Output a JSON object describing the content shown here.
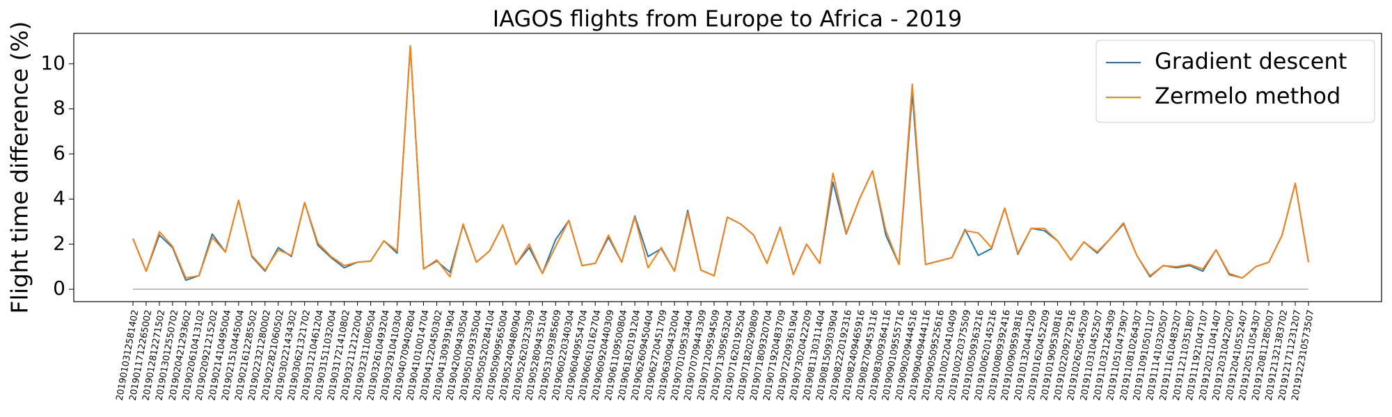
{
  "chart_data": {
    "type": "line",
    "title": "IAGOS flights from Europe to Africa - 2019",
    "ylabel": "Flight time difference (%)",
    "categories": [
      "2019010312581402",
      "2019011712265002",
      "2019012812271502",
      "2019013012550702",
      "2019020421293602",
      "2019020610413102",
      "2019020921215202",
      "2019021410495004",
      "2019021510445004",
      "2019021612285502",
      "2019022321280002",
      "2019022821060502",
      "2019030221434302",
      "2019030621321702",
      "2019031210461204",
      "2019031511032004",
      "2019031721410802",
      "2019032112122004",
      "2019032311080504",
      "2019032610493204",
      "2019032910410304",
      "2019040709402804",
      "2019041010014704",
      "2019041220450302",
      "2019041309391904",
      "2019042009430504",
      "2019050109335004",
      "2019050520284104",
      "2019050909565004",
      "2019052409480904",
      "2019052620323309",
      "2019052809435104",
      "2019053109385609",
      "2019060220340304",
      "2019060409554704",
      "2019060610162704",
      "2019060920440309",
      "2019061109500804",
      "2019061820191204",
      "2019062609450404",
      "2019062720451709",
      "2019063009432004",
      "2019070109533404",
      "2019070709443309",
      "2019071209594509",
      "2019071309563204",
      "2019071620192504",
      "2019071820290809",
      "2019071809320704",
      "2019071920483709",
      "2019072209361904",
      "2019073020422209",
      "2019081130311404",
      "2019081509303904",
      "2019082220192316",
      "2019082409465916",
      "2019082709453116",
      "2019083009364116",
      "2019090109555716",
      "2019090209444516",
      "2019090409444116",
      "2019090509525616",
      "2019100220410409",
      "2019100220375509",
      "2019100509363216",
      "2019100620145216",
      "2019100809392416",
      "2019100909593816",
      "2019101320441209",
      "2019101620452209",
      "2019101909530816",
      "2019102209272916",
      "2019102620545209",
      "2019110310452507",
      "2019110321264309",
      "2019110510473907",
      "2019110810264307",
      "2019110910501107",
      "2019111410320507",
      "2019111610483207",
      "2019112110351807",
      "2019111921047107",
      "2019120211041407",
      "2019120310422007",
      "2019120410552407",
      "2019120511054307",
      "2019120811285007",
      "2019121321383702",
      "2019121711231207",
      "2019122310573507"
    ],
    "series": [
      {
        "name": "Gradient descent",
        "color": "#1f77b4",
        "values": [
          2.25,
          0.8,
          2.4,
          1.85,
          0.4,
          0.6,
          2.45,
          1.65,
          3.95,
          1.45,
          0.8,
          1.85,
          1.45,
          3.85,
          1.95,
          1.4,
          0.95,
          1.2,
          1.25,
          2.15,
          1.6,
          10.8,
          0.9,
          1.25,
          0.75,
          2.85,
          1.2,
          1.7,
          2.85,
          1.1,
          1.85,
          0.7,
          2.2,
          3.05,
          1.05,
          1.15,
          2.3,
          1.2,
          3.25,
          1.45,
          1.8,
          0.8,
          3.5,
          0.85,
          0.6,
          3.2,
          2.9,
          2.4,
          1.15,
          2.75,
          0.65,
          2.0,
          1.15,
          4.75,
          2.45,
          4.0,
          5.25,
          2.4,
          1.1,
          8.7,
          1.1,
          1.25,
          1.4,
          2.65,
          1.5,
          1.8,
          3.6,
          1.55,
          2.7,
          2.6,
          2.15,
          1.3,
          2.1,
          1.6,
          2.25,
          2.9,
          1.5,
          0.55,
          1.05,
          0.95,
          1.05,
          0.8,
          1.75,
          0.65,
          0.5,
          1.0,
          1.2,
          2.4,
          4.7,
          1.2
        ]
      },
      {
        "name": "Zermelo method",
        "color": "#ff7f0e",
        "values": [
          2.25,
          0.8,
          2.55,
          1.9,
          0.5,
          0.6,
          2.3,
          1.65,
          3.95,
          1.5,
          0.85,
          1.75,
          1.5,
          3.85,
          2.05,
          1.45,
          1.05,
          1.2,
          1.25,
          2.15,
          1.7,
          10.8,
          0.9,
          1.3,
          0.55,
          2.9,
          1.2,
          1.7,
          2.85,
          1.1,
          2.0,
          0.7,
          1.9,
          3.05,
          1.05,
          1.15,
          2.4,
          1.2,
          3.2,
          0.95,
          1.85,
          0.8,
          3.4,
          0.85,
          0.6,
          3.2,
          2.9,
          2.4,
          1.15,
          2.75,
          0.65,
          2.0,
          1.15,
          5.15,
          2.5,
          4.0,
          5.25,
          2.6,
          1.1,
          9.1,
          1.1,
          1.25,
          1.4,
          2.6,
          2.5,
          1.85,
          3.6,
          1.6,
          2.7,
          2.7,
          2.15,
          1.3,
          2.1,
          1.65,
          2.25,
          2.95,
          1.5,
          0.6,
          1.05,
          1.0,
          1.1,
          0.9,
          1.75,
          0.7,
          0.5,
          1.0,
          1.2,
          2.4,
          4.7,
          1.2
        ]
      }
    ],
    "ylim": [
      -0.55,
      11.35
    ],
    "yticks": [
      0,
      2,
      4,
      6,
      8,
      10
    ],
    "legend": "upper right"
  }
}
